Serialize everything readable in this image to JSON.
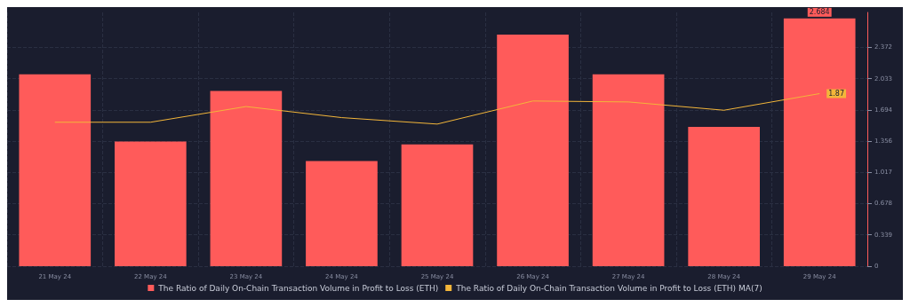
{
  "chart_data": {
    "type": "bar",
    "categories": [
      "21 May 24",
      "22 May 24",
      "23 May 24",
      "24 May 24",
      "25 May 24",
      "26 May 24",
      "27 May 24",
      "28 May 24",
      "29 May 24"
    ],
    "series": [
      {
        "name": "The Ratio of Daily On-Chain Transaction Volume in Profit to Loss (ETH)",
        "color": "#ff5b5a",
        "values": [
          2.08,
          1.35,
          1.9,
          1.14,
          1.32,
          2.51,
          2.08,
          1.51,
          2.684
        ],
        "value_labels": [
          null,
          null,
          null,
          null,
          null,
          null,
          null,
          null,
          "2.684"
        ]
      },
      {
        "name": "The Ratio of Daily On-Chain Transaction Volume in Profit to Loss (ETH) MA(7)",
        "type": "line",
        "color": "#f3b63a",
        "values": [
          1.56,
          1.56,
          1.73,
          1.61,
          1.54,
          1.79,
          1.78,
          1.69,
          1.87
        ],
        "value_labels": [
          null,
          null,
          null,
          null,
          null,
          null,
          null,
          null,
          "1.87"
        ]
      }
    ],
    "ylim": [
      0,
      2.75
    ],
    "yticks": [
      0,
      0.339,
      0.678,
      1.017,
      1.356,
      1.694,
      2.033,
      2.372
    ],
    "grid": true,
    "legend": "bottom",
    "marker": "none"
  }
}
